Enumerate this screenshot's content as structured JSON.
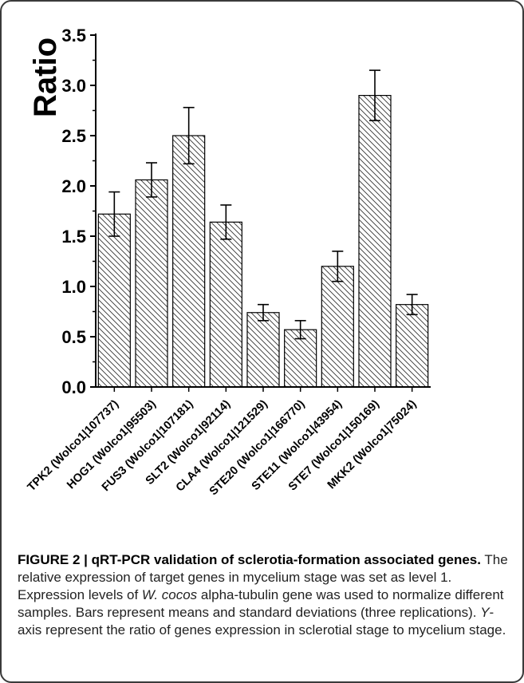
{
  "chart_data": {
    "type": "bar",
    "title": "",
    "xlabel": "",
    "ylabel": "Ratio",
    "ylim": [
      0,
      3.5
    ],
    "y_ticks": [
      "0.0",
      "0.5",
      "1.0",
      "1.5",
      "2.0",
      "2.5",
      "3.0",
      "3.5"
    ],
    "categories": [
      "TPK2 (Wolco1|107737)",
      "HOG1 (Wolco1|95503)",
      "FUS3 (Wolco1|107181)",
      "SLT2 (Wolco1|92114)",
      "CLA4 (Wolco1|121529)",
      "STE20 (Wolco1|166770)",
      "STE11 (Wolco1|43954)",
      "STE7 (Wolco1|150169)",
      "MKK2 (Wolco1|75024)"
    ],
    "values": [
      1.72,
      2.06,
      2.5,
      1.64,
      0.74,
      0.57,
      1.2,
      2.9,
      0.82
    ],
    "errors": [
      0.22,
      0.17,
      0.28,
      0.17,
      0.08,
      0.09,
      0.15,
      0.25,
      0.1
    ],
    "bar_fill": "diagonal hatch",
    "colors": {
      "bar_edge": "#000000",
      "hatch": "#333333",
      "error_bar": "#000000"
    },
    "grid": false,
    "legend": "none"
  },
  "caption": {
    "head": "FIGURE 2 | qRT-PCR validation of sclerotia-formation associated genes.",
    "t1": " The relative expression of target genes in mycelium stage was set as level 1. Expression levels of ",
    "i1": "W. cocos",
    "t2": " alpha-tubulin gene was used to normalize different samples. Bars represent means and standard deviations (three replications). ",
    "i2": "Y",
    "t3": "-axis represent the ratio of genes expression in sclerotial stage to mycelium stage."
  }
}
